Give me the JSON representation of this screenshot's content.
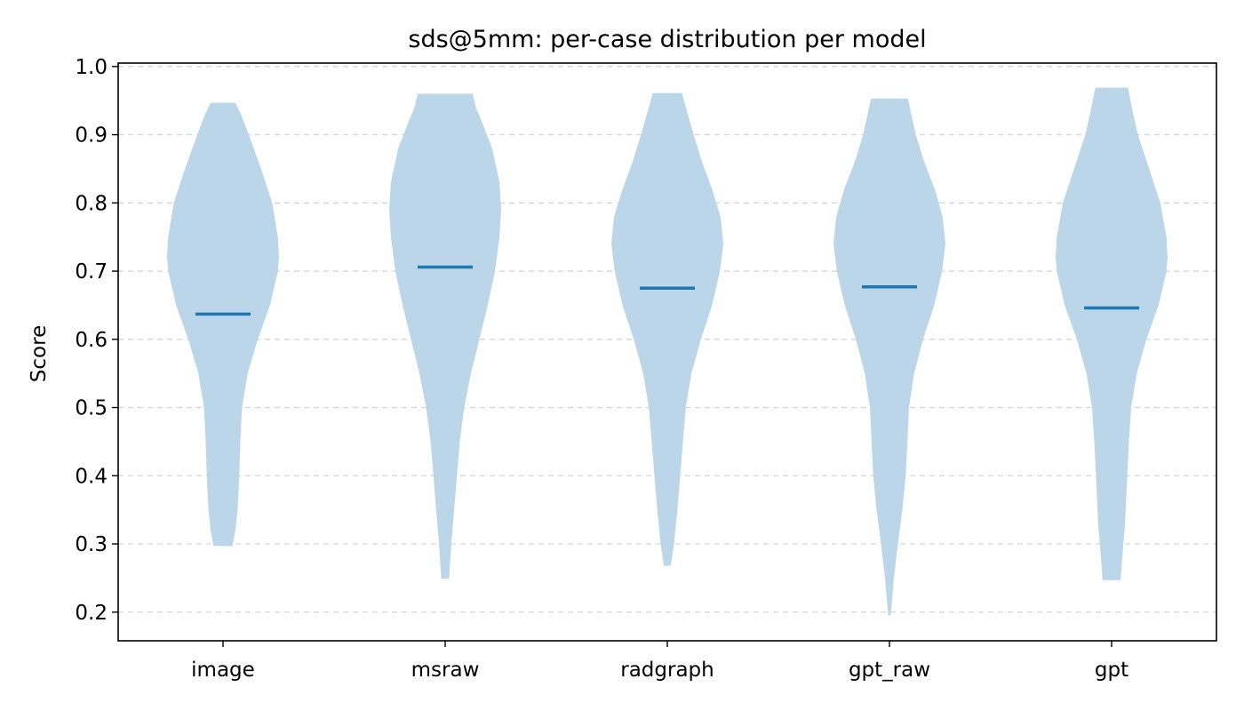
{
  "chart_data": {
    "type": "violin",
    "title": "sds@5mm: per-case distribution per model",
    "xlabel": "",
    "ylabel": "Score",
    "ylim": [
      0.158,
      1.005
    ],
    "yticks": [
      0.2,
      0.3,
      0.4,
      0.5,
      0.6,
      0.7,
      0.8,
      0.9,
      1.0
    ],
    "grid": "y-dashed",
    "categories": [
      "image",
      "msraw",
      "radgraph",
      "gpt_raw",
      "gpt"
    ],
    "colors": {
      "body": "#bad6e8",
      "median": "#1f77b4"
    },
    "series": [
      {
        "category": "image",
        "min": 0.297,
        "max": 0.947,
        "median": 0.637,
        "density_profile": [
          [
            0.297,
            0.17
          ],
          [
            0.32,
            0.22
          ],
          [
            0.35,
            0.26
          ],
          [
            0.4,
            0.29
          ],
          [
            0.45,
            0.31
          ],
          [
            0.5,
            0.34
          ],
          [
            0.55,
            0.44
          ],
          [
            0.6,
            0.62
          ],
          [
            0.65,
            0.84
          ],
          [
            0.7,
            0.98
          ],
          [
            0.72,
            1.0
          ],
          [
            0.75,
            0.98
          ],
          [
            0.8,
            0.88
          ],
          [
            0.85,
            0.68
          ],
          [
            0.9,
            0.46
          ],
          [
            0.93,
            0.32
          ],
          [
            0.947,
            0.22
          ]
        ]
      },
      {
        "category": "msraw",
        "min": 0.249,
        "max": 0.96,
        "median": 0.706,
        "density_profile": [
          [
            0.249,
            0.07
          ],
          [
            0.3,
            0.11
          ],
          [
            0.35,
            0.16
          ],
          [
            0.4,
            0.21
          ],
          [
            0.45,
            0.26
          ],
          [
            0.5,
            0.34
          ],
          [
            0.55,
            0.46
          ],
          [
            0.6,
            0.61
          ],
          [
            0.65,
            0.76
          ],
          [
            0.7,
            0.89
          ],
          [
            0.75,
            0.97
          ],
          [
            0.79,
            1.0
          ],
          [
            0.83,
            0.97
          ],
          [
            0.88,
            0.84
          ],
          [
            0.92,
            0.65
          ],
          [
            0.94,
            0.55
          ],
          [
            0.96,
            0.49
          ]
        ]
      },
      {
        "category": "radgraph",
        "min": 0.268,
        "max": 0.961,
        "median": 0.675,
        "density_profile": [
          [
            0.268,
            0.06
          ],
          [
            0.3,
            0.12
          ],
          [
            0.35,
            0.18
          ],
          [
            0.4,
            0.23
          ],
          [
            0.45,
            0.28
          ],
          [
            0.5,
            0.33
          ],
          [
            0.55,
            0.43
          ],
          [
            0.6,
            0.6
          ],
          [
            0.65,
            0.8
          ],
          [
            0.7,
            0.94
          ],
          [
            0.74,
            1.0
          ],
          [
            0.78,
            0.95
          ],
          [
            0.82,
            0.8
          ],
          [
            0.86,
            0.62
          ],
          [
            0.9,
            0.47
          ],
          [
            0.94,
            0.33
          ],
          [
            0.961,
            0.26
          ]
        ]
      },
      {
        "category": "gpt_raw",
        "min": 0.195,
        "max": 0.953,
        "median": 0.677,
        "density_profile": [
          [
            0.195,
            0.02
          ],
          [
            0.22,
            0.05
          ],
          [
            0.25,
            0.08
          ],
          [
            0.3,
            0.15
          ],
          [
            0.35,
            0.23
          ],
          [
            0.4,
            0.29
          ],
          [
            0.45,
            0.32
          ],
          [
            0.5,
            0.35
          ],
          [
            0.55,
            0.44
          ],
          [
            0.6,
            0.6
          ],
          [
            0.65,
            0.8
          ],
          [
            0.7,
            0.94
          ],
          [
            0.74,
            1.0
          ],
          [
            0.78,
            0.95
          ],
          [
            0.82,
            0.81
          ],
          [
            0.86,
            0.62
          ],
          [
            0.9,
            0.47
          ],
          [
            0.953,
            0.33
          ]
        ]
      },
      {
        "category": "gpt",
        "min": 0.247,
        "max": 0.969,
        "median": 0.646,
        "density_profile": [
          [
            0.247,
            0.16
          ],
          [
            0.28,
            0.19
          ],
          [
            0.33,
            0.24
          ],
          [
            0.4,
            0.28
          ],
          [
            0.45,
            0.31
          ],
          [
            0.5,
            0.35
          ],
          [
            0.55,
            0.45
          ],
          [
            0.6,
            0.62
          ],
          [
            0.65,
            0.84
          ],
          [
            0.7,
            0.98
          ],
          [
            0.72,
            1.0
          ],
          [
            0.75,
            0.98
          ],
          [
            0.8,
            0.87
          ],
          [
            0.85,
            0.67
          ],
          [
            0.9,
            0.47
          ],
          [
            0.94,
            0.36
          ],
          [
            0.969,
            0.29
          ]
        ]
      }
    ]
  }
}
